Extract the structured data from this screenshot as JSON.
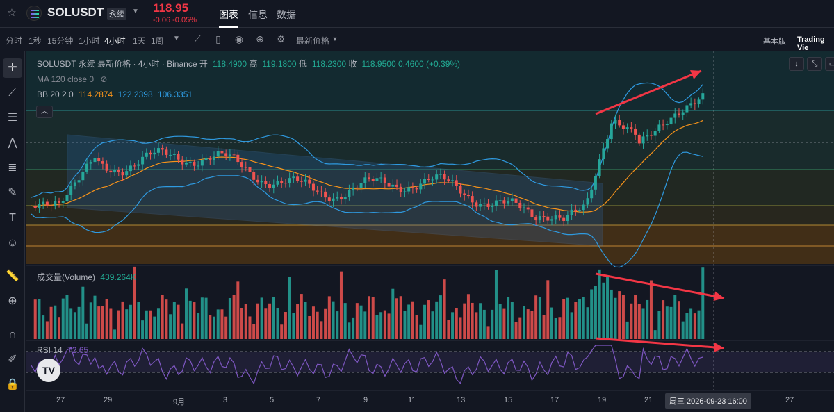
{
  "header": {
    "symbol": "SOLUSDT",
    "contract_tag": "永续",
    "last_price": "118.95",
    "price_change": "-0.06 -0.05%",
    "tabs": [
      "图表",
      "信息",
      "数据"
    ],
    "active_tab": "图表"
  },
  "toolbar": {
    "timeframes": [
      "分时",
      "1秒",
      "15分钟",
      "1小时",
      "4小时",
      "1天",
      "1周"
    ],
    "active_timeframe": "4小时",
    "price_type": "最新价格",
    "view_basic": "基本版",
    "view_tradingview": "Trading Vie"
  },
  "legend": {
    "title": "SOLUSDT 永续 最新价格 · 4小时 · Binance",
    "open_label": "开=",
    "open": "118.4900",
    "high_label": "高=",
    "high": "119.1800",
    "low_label": "低=",
    "low": "118.2300",
    "close_label": "收=",
    "close": "118.9500",
    "change": "0.4600 (+0.39%)",
    "ma": "MA 120 close 0",
    "bb_label": "BB 20 2 0",
    "bb_mid": "114.2874",
    "bb_upper": "122.2398",
    "bb_lower": "106.3351",
    "volume_label": "成交量(Volume)",
    "volume_value": "439.264K",
    "rsi_label": "RSI 14",
    "rsi_value": "72.65"
  },
  "xaxis": {
    "labels": [
      "27",
      "29",
      "9月",
      "3",
      "5",
      "7",
      "9",
      "11",
      "13",
      "15",
      "17",
      "19",
      "21",
      "23",
      "27"
    ],
    "crosshair": "周三 2026-09-23   16:00"
  },
  "colors": {
    "up": "#26a69a",
    "down": "#ef5350",
    "bb_band": "#2f9ae0",
    "bb_mid": "#f7931a",
    "rsi": "#7e57c2",
    "annotation_arrow": "#f23645"
  },
  "chart_data": {
    "type": "candlestick",
    "symbol": "SOLUSDT",
    "interval": "4小时",
    "dates": [
      "27",
      "29",
      "9月",
      "3",
      "5",
      "7",
      "9",
      "11",
      "13",
      "15",
      "17",
      "19",
      "21",
      "23"
    ],
    "close_approx": [
      101,
      111,
      110,
      106,
      109,
      110,
      108,
      106,
      108,
      106,
      103,
      115,
      118,
      119
    ],
    "indicators": {
      "bollinger": {
        "period": 20,
        "mult": 2,
        "mid": 114.2874,
        "upper": 122.2398,
        "lower": 106.3351
      },
      "volume_last": "439.264K",
      "rsi_14": 72.65
    }
  }
}
